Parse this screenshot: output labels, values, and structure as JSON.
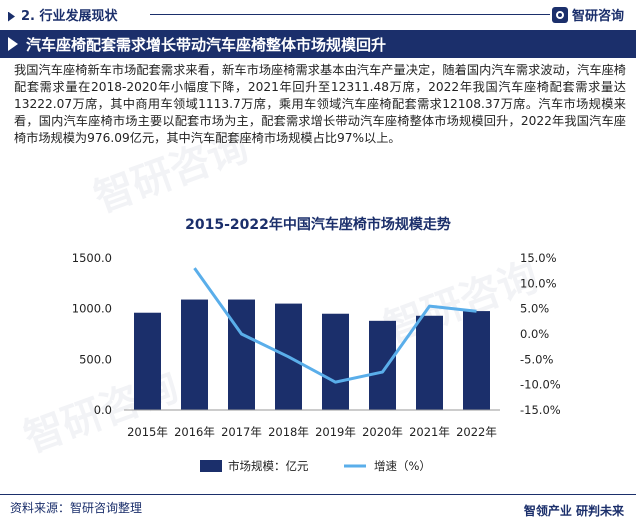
{
  "header": {
    "section": "2. 行业发展现状",
    "brand": "智研咨询"
  },
  "title": "汽车座椅配套需求增长带动汽车座椅整体市场规模回升",
  "paragraph": "我国汽车座椅新车市场配套需求来看，新车市场座椅需求基本由汽车产量决定，随着国内汽车需求波动，汽车座椅配套需求量在2018-2020年小幅度下降，2021年回升至12311.48万席，2022年我国汽车座椅配套需求量达13222.07万席，其中商用车领域1113.7万席，乘用车领域汽车座椅配套需求12108.37万席。汽车市场规模来看，国内汽车座椅市场主要以配套市场为主，配套需求增长带动汽车座椅整体市场规模回升，2022年我国汽车座椅市场规模为976.09亿元，其中汽车配套座椅市场规模占比97%以上。",
  "chart_data": {
    "type": "bar",
    "title": "2015-2022年中国汽车座椅市场规模走势",
    "categories": [
      "2015年",
      "2016年",
      "2017年",
      "2018年",
      "2019年",
      "2020年",
      "2021年",
      "2022年"
    ],
    "series": [
      {
        "name": "市场规模：亿元",
        "type": "bar",
        "axis": "left",
        "color": "#1b2f6b",
        "values": [
          960,
          1090,
          1090,
          1050,
          950,
          880,
          930,
          976.09
        ]
      },
      {
        "name": "增速（%）",
        "type": "line",
        "axis": "right",
        "color": "#5aaeea",
        "values": [
          null,
          13.0,
          0.0,
          -4.5,
          -9.5,
          -7.5,
          5.5,
          4.5
        ]
      }
    ],
    "y_left": {
      "min": 0,
      "max": 1500,
      "ticks": [
        "0.0",
        "500.0",
        "1000.0",
        "1500.0"
      ]
    },
    "y_right": {
      "min": -15,
      "max": 15,
      "ticks": [
        "-15.0%",
        "-10.0%",
        "-5.0%",
        "0.0%",
        "5.0%",
        "10.0%",
        "15.0%"
      ]
    },
    "legend_position": "bottom",
    "grid": false
  },
  "footer": {
    "source": "资料来源：智研咨询整理",
    "slogan": "智领产业  研判未来"
  }
}
